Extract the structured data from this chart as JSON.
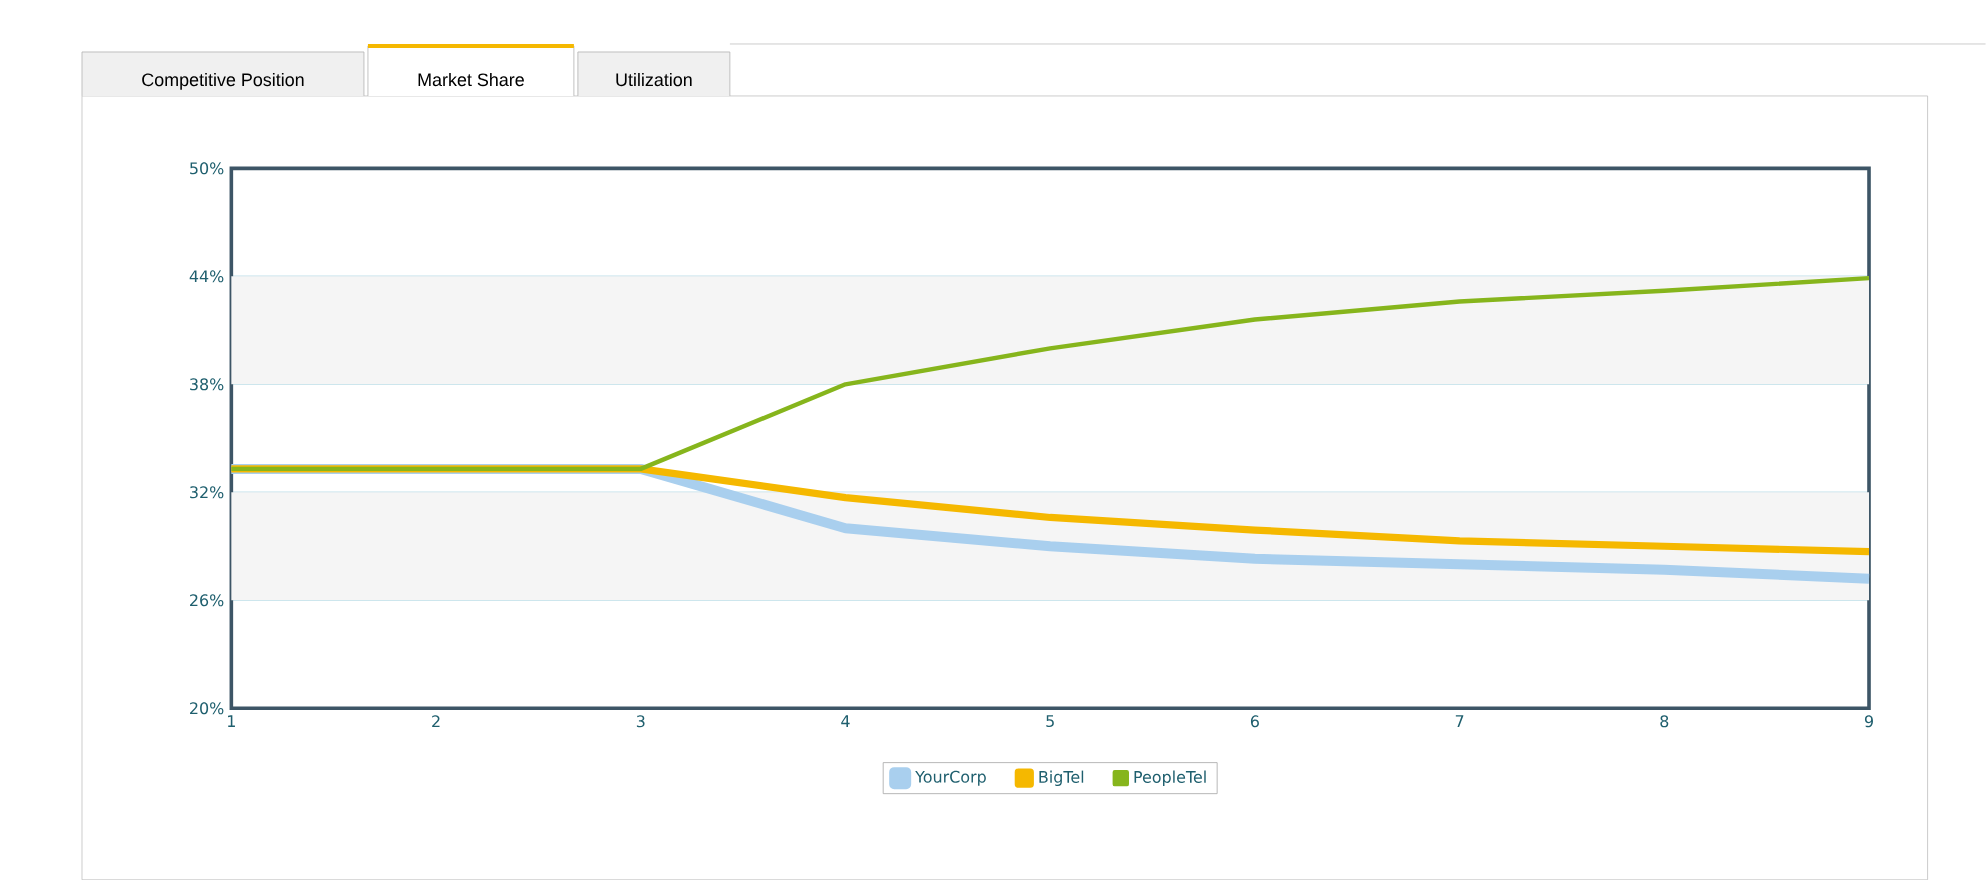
{
  "chart_data": {
    "type": "line",
    "annotations": [
      "Competitive Position",
      "Market Share",
      "Utilization"
    ],
    "x": [
      1,
      2,
      3,
      4,
      5,
      6,
      7,
      8,
      9
    ],
    "series": [
      {
        "name": "YourCorp",
        "color": "#a9cfee",
        "values": [
          33.3,
          33.3,
          33.3,
          30.0,
          29.0,
          28.3,
          28.0,
          27.7,
          27.2
        ]
      },
      {
        "name": "BigTel",
        "color": "#f5b800",
        "values": [
          33.3,
          33.3,
          33.3,
          31.7,
          30.6,
          29.9,
          29.3,
          29.0,
          28.7
        ]
      },
      {
        "name": "PeopleTel",
        "color": "#86b51c",
        "values": [
          33.3,
          33.3,
          33.3,
          38.0,
          40.0,
          41.6,
          42.6,
          43.2,
          43.9
        ]
      }
    ],
    "xlim": [
      1,
      9
    ],
    "xticks": [
      1,
      2,
      3,
      4,
      5,
      6,
      7,
      8,
      9
    ],
    "ylim": [
      20,
      50
    ],
    "yticks": [
      {
        "value": 20,
        "label": "20%"
      },
      {
        "value": 26,
        "label": "26%"
      },
      {
        "value": 32,
        "label": "32%"
      },
      {
        "value": 38,
        "label": "38%"
      },
      {
        "value": 44,
        "label": "44%"
      },
      {
        "value": 50,
        "label": "50%"
      }
    ],
    "bands": [
      {
        "axis": "y",
        "from": 26,
        "to": 32,
        "color": "#f5f5f5"
      },
      {
        "axis": "y",
        "from": 38,
        "to": 44,
        "color": "#f5f5f5"
      }
    ],
    "grid": "y",
    "legend": "bottom",
    "marker": "none",
    "line_style": "solid"
  }
}
